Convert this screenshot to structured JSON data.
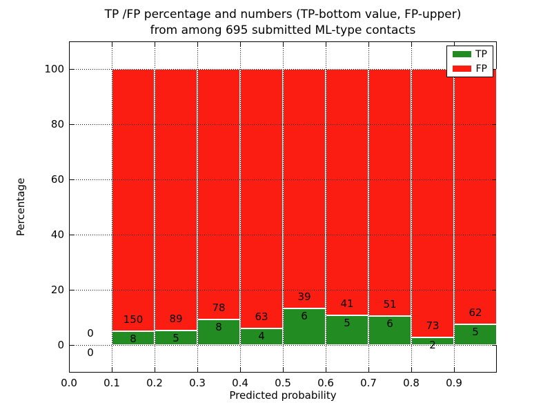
{
  "chart_data": {
    "type": "bar",
    "stacked": true,
    "title": [
      "TP /FP percentage and numbers (TP-bottom value, FP-upper)",
      "from among 695 submitted ML-type contacts"
    ],
    "xlabel": "Predicted probability",
    "ylabel": "Percentage",
    "xlim": [
      0.0,
      1.0
    ],
    "ylim": [
      -10,
      110
    ],
    "grid": "dotted-both-axes-above-bars",
    "legend_position": "upper-right",
    "bin_starts": [
      0.0,
      0.1,
      0.2,
      0.3,
      0.4,
      0.5,
      0.6,
      0.7,
      0.8,
      0.9
    ],
    "bin_width": 0.1,
    "x_ticks": [
      "0.0",
      "0.1",
      "0.2",
      "0.3",
      "0.4",
      "0.5",
      "0.6",
      "0.7",
      "0.8",
      "0.9"
    ],
    "y_ticks": [
      "0",
      "20",
      "40",
      "60",
      "80",
      "100"
    ],
    "series": [
      {
        "name": "TP",
        "color": "#228b22",
        "counts": [
          0,
          8,
          5,
          8,
          4,
          6,
          5,
          6,
          2,
          5
        ]
      },
      {
        "name": "FP",
        "color": "#fb1d12",
        "counts": [
          0,
          150,
          89,
          78,
          63,
          39,
          41,
          51,
          73,
          62
        ]
      }
    ],
    "bar_value_unit": "percent-of-bin-total",
    "annotation_style": "FP count above TP/FP boundary, TP count below boundary"
  }
}
